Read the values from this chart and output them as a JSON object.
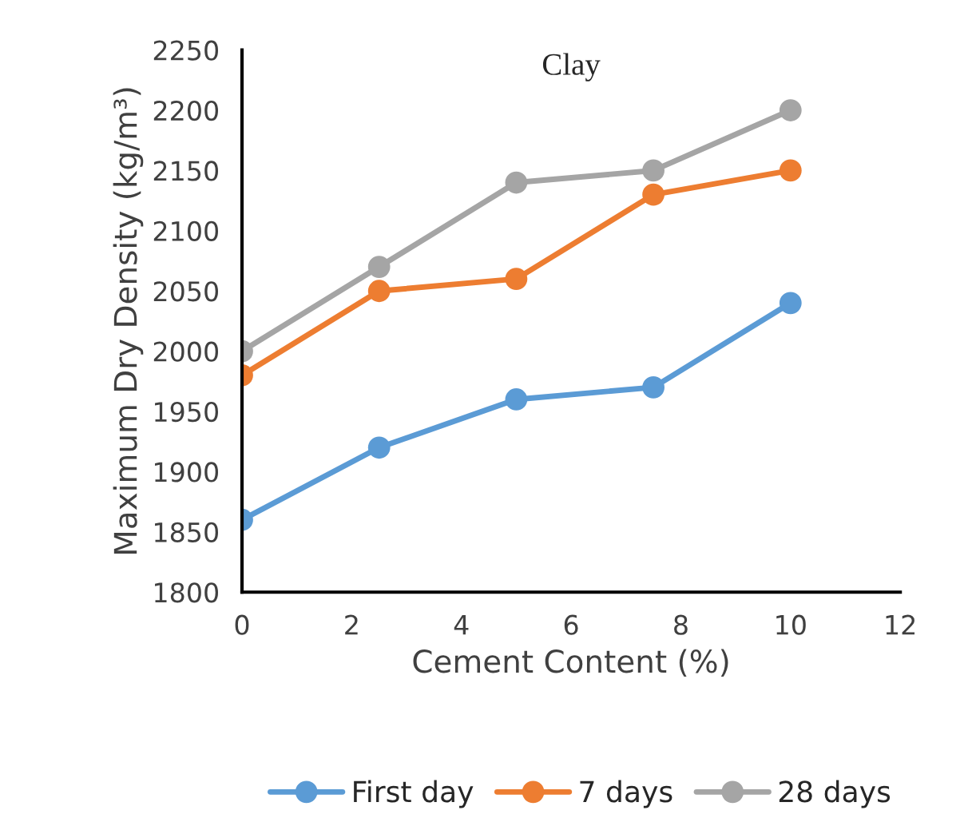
{
  "chart_data": {
    "type": "line",
    "title": "Clay",
    "xlabel": "Cement Content (%)",
    "ylabel": "Maximum Dry Density (kg/m³)",
    "x": [
      0,
      2.5,
      5,
      7.5,
      10
    ],
    "series": [
      {
        "name": "First day",
        "color": "#5b9bd5",
        "values": [
          1860,
          1920,
          1960,
          1970,
          2040
        ]
      },
      {
        "name": "7 days",
        "color": "#ed7d31",
        "values": [
          1980,
          2050,
          2060,
          2130,
          2150
        ]
      },
      {
        "name": "28 days",
        "color": "#a5a5a5",
        "values": [
          2000,
          2070,
          2140,
          2150,
          2200
        ]
      }
    ],
    "xlim": [
      0,
      12
    ],
    "xticks": [
      0,
      2,
      4,
      6,
      8,
      10,
      12
    ],
    "ylim": [
      1800,
      2250
    ],
    "yticks": [
      1800,
      1850,
      1900,
      1950,
      2000,
      2050,
      2100,
      2150,
      2200,
      2250
    ],
    "grid": false,
    "legend": "bottom",
    "marker": "circle",
    "line_style": "solid"
  }
}
